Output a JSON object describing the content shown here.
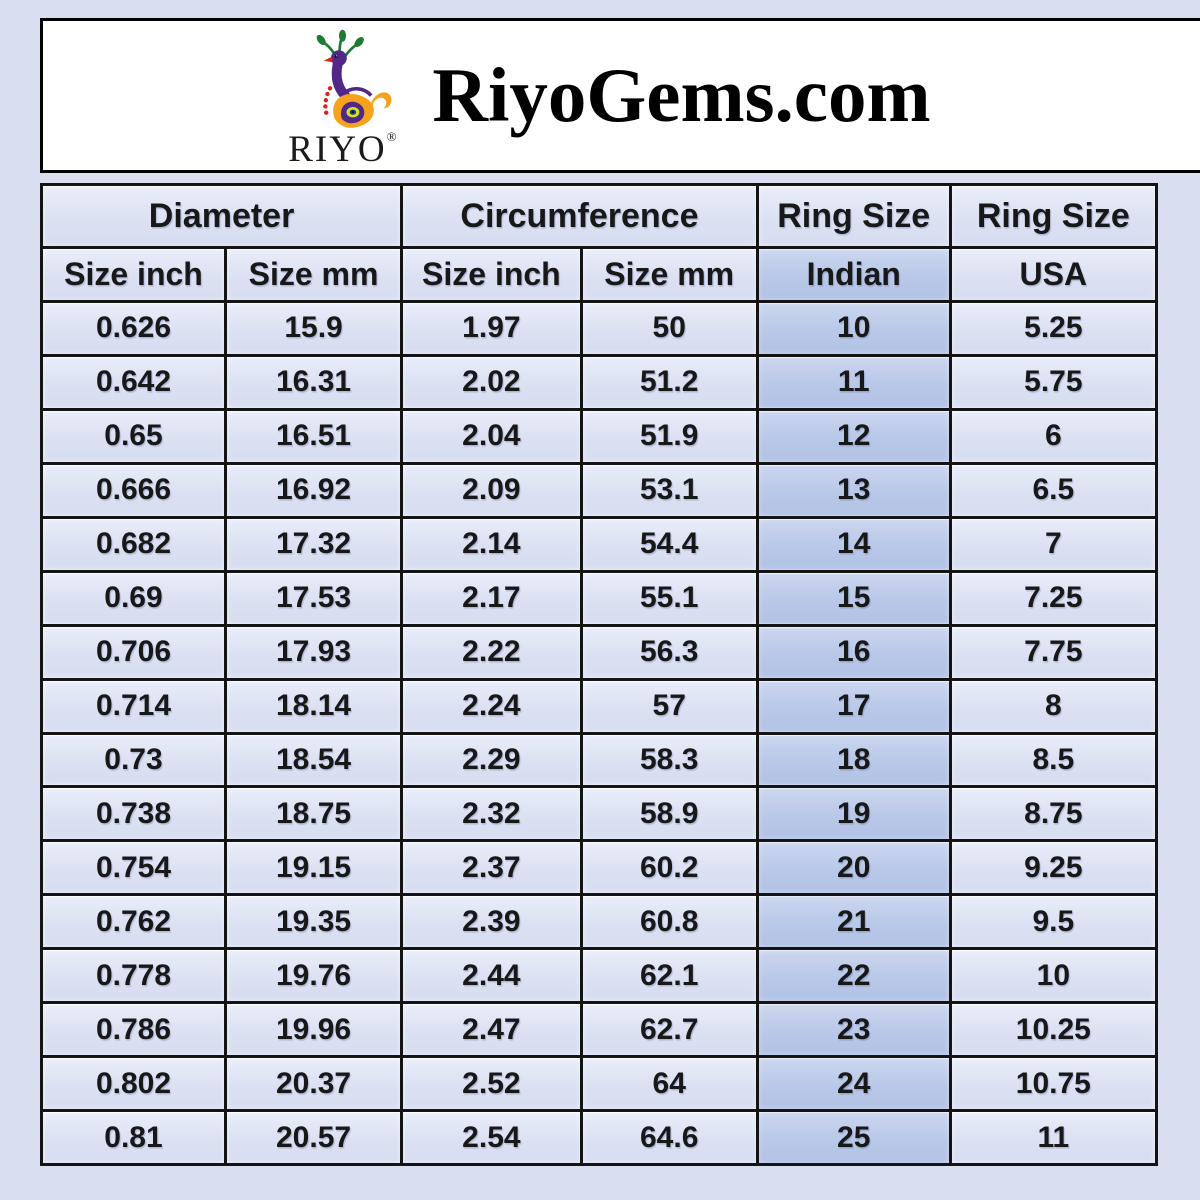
{
  "page": {
    "background_color": "#d9dff1"
  },
  "header": {
    "brand_title": "RiyoGems.com",
    "logo": {
      "name": "RIYO",
      "reg_mark": "®",
      "icon": "peacock-icon"
    }
  },
  "chart_data": {
    "type": "table",
    "column_groups": [
      {
        "label": "Diameter",
        "span": 2
      },
      {
        "label": "Circumference",
        "span": 2
      },
      {
        "label": "Ring Size",
        "span": 1
      },
      {
        "label": "Ring Size",
        "span": 1
      }
    ],
    "columns": [
      "Size inch",
      "Size mm",
      "Size inch",
      "Size mm",
      "Indian",
      "USA"
    ],
    "highlight_column_index": 4,
    "rows": [
      [
        "0.626",
        "15.9",
        "1.97",
        "50",
        "10",
        "5.25"
      ],
      [
        "0.642",
        "16.31",
        "2.02",
        "51.2",
        "11",
        "5.75"
      ],
      [
        "0.65",
        "16.51",
        "2.04",
        "51.9",
        "12",
        "6"
      ],
      [
        "0.666",
        "16.92",
        "2.09",
        "53.1",
        "13",
        "6.5"
      ],
      [
        "0.682",
        "17.32",
        "2.14",
        "54.4",
        "14",
        "7"
      ],
      [
        "0.69",
        "17.53",
        "2.17",
        "55.1",
        "15",
        "7.25"
      ],
      [
        "0.706",
        "17.93",
        "2.22",
        "56.3",
        "16",
        "7.75"
      ],
      [
        "0.714",
        "18.14",
        "2.24",
        "57",
        "17",
        "8"
      ],
      [
        "0.73",
        "18.54",
        "2.29",
        "58.3",
        "18",
        "8.5"
      ],
      [
        "0.738",
        "18.75",
        "2.32",
        "58.9",
        "19",
        "8.75"
      ],
      [
        "0.754",
        "19.15",
        "2.37",
        "60.2",
        "20",
        "9.25"
      ],
      [
        "0.762",
        "19.35",
        "2.39",
        "60.8",
        "21",
        "9.5"
      ],
      [
        "0.778",
        "19.76",
        "2.44",
        "62.1",
        "22",
        "10"
      ],
      [
        "0.786",
        "19.96",
        "2.47",
        "62.7",
        "23",
        "10.25"
      ],
      [
        "0.802",
        "20.37",
        "2.52",
        "64",
        "24",
        "10.75"
      ],
      [
        "0.81",
        "20.57",
        "2.54",
        "64.6",
        "25",
        "11"
      ]
    ],
    "layout": {
      "grid": "on",
      "border_color": "#141414",
      "cell_fill": "#dce2f2",
      "highlight_fill": "#b9c8e8"
    }
  },
  "colors": {
    "page_background": "#d9dff1",
    "header_background": "#ffffff",
    "logo_purple": "#512888",
    "logo_orange": "#f6a21d",
    "logo_green": "#1f7a33",
    "logo_red": "#e02020"
  }
}
